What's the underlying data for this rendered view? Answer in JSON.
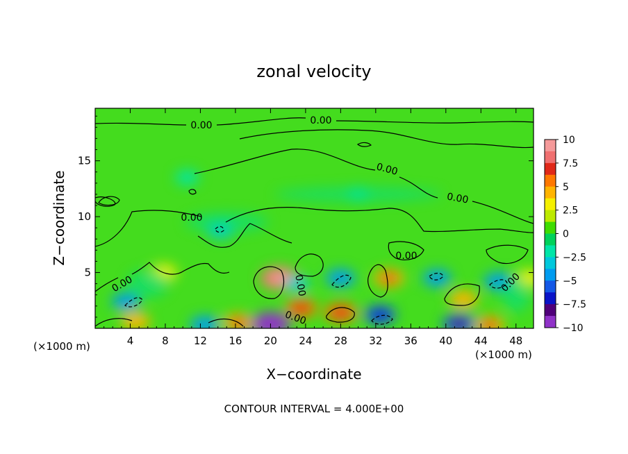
{
  "chart_data": {
    "type": "heatmap",
    "title": "zonal velocity",
    "xlabel": "X−coordinate",
    "ylabel": "Z−coordinate",
    "x_unit_label": "(×1000 m)",
    "x_unit_label_right": "(×1000 m)",
    "xlim": [
      0,
      50
    ],
    "ylim": [
      0,
      19.7
    ],
    "x_ticks": [
      4,
      8,
      12,
      16,
      20,
      24,
      28,
      32,
      36,
      40,
      44,
      48
    ],
    "y_ticks": [
      5,
      10,
      15
    ],
    "colorbar": {
      "min": -10,
      "max": 10,
      "ticks": [
        "10",
        "7.5",
        "5",
        "2.5",
        "0",
        "−2.5",
        "−5",
        "−7.5",
        "−10"
      ],
      "colors": [
        "#f59a9a",
        "#f07070",
        "#e02818",
        "#ff7800",
        "#ffb400",
        "#f5f000",
        "#bdea00",
        "#3fdc00",
        "#00d25a",
        "#00e6a8",
        "#00c8dc",
        "#009cf0",
        "#1458e6",
        "#0a14c8",
        "#50007a",
        "#9032c8"
      ]
    },
    "contour_labels": [
      "0.00",
      "0.00",
      "0.00",
      "0.00",
      "0.00",
      "0.00",
      "0.00",
      "0.00",
      "0.00",
      "0.00"
    ],
    "contour_interval_text": "CONTOUR INTERVAL = 4.000E+00",
    "features": [
      {
        "x": 21.0,
        "z": 4.5,
        "value": 8.5
      },
      {
        "x": 28.0,
        "z": 1.4,
        "value": 6.0
      },
      {
        "x": 23.5,
        "z": 1.8,
        "value": 5.5
      },
      {
        "x": 33.5,
        "z": 4.5,
        "value": 5.0
      },
      {
        "x": 42.0,
        "z": 2.6,
        "value": 4.5
      },
      {
        "x": 4.6,
        "z": 0.6,
        "value": 4.5
      },
      {
        "x": 16.3,
        "z": 0.5,
        "value": 5.0
      },
      {
        "x": 45.0,
        "z": 0.3,
        "value": 5.0
      },
      {
        "x": 7.8,
        "z": 5.0,
        "value": 3.5
      },
      {
        "x": 49.5,
        "z": 4.5,
        "value": 3.5
      },
      {
        "x": 20.0,
        "z": 0.4,
        "value": -9.0
      },
      {
        "x": 32.5,
        "z": 1.2,
        "value": -5.5
      },
      {
        "x": 41.5,
        "z": 0.4,
        "value": -6.0
      },
      {
        "x": 12.5,
        "z": 0.3,
        "value": -4.5
      },
      {
        "x": 28.0,
        "z": 4.5,
        "value": -4.5
      },
      {
        "x": 46.0,
        "z": 4.2,
        "value": -4.5
      },
      {
        "x": 3.5,
        "z": 2.4,
        "value": -4.0
      },
      {
        "x": 39.0,
        "z": 4.5,
        "value": -4.0
      },
      {
        "x": 14.3,
        "z": 8.8,
        "value": -3.5
      },
      {
        "x": 23.0,
        "z": 4.0,
        "value": -2.5
      },
      {
        "x": 10.5,
        "z": 13.5,
        "value": -2.0
      },
      {
        "x": 30.0,
        "z": 12.0,
        "value": -1.5
      }
    ]
  }
}
